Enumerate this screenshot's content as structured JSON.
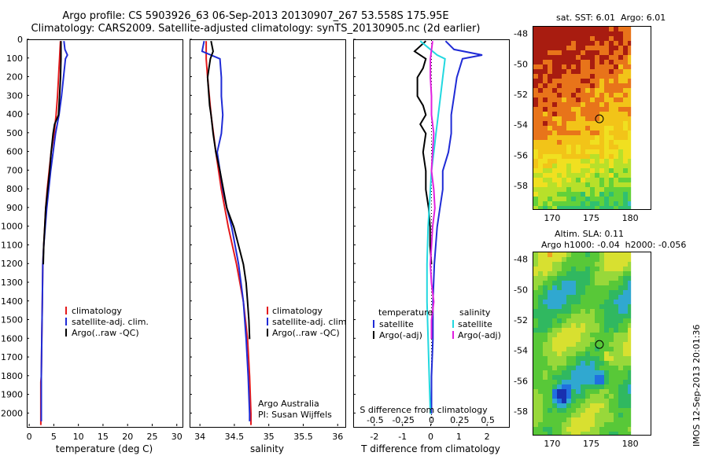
{
  "header": {
    "line1": "Argo profile: CS 5903926_63 06-Sep-2013 20130907_267 53.558S 175.95E",
    "line2": "Climatology: CARS2009. Satellite-adjusted climatology: synTS_20130905.nc (2d earlier)"
  },
  "colors": {
    "climatology": "#e41a1c",
    "satellite": "#1f2bd6",
    "argo": "#000000",
    "sat_diff": "#22d8e0",
    "argo_sal_diff": "#e020e0"
  },
  "chart_data": [
    {
      "type": "line",
      "xlabel": "temperature (deg C)",
      "xlim": [
        -0.5,
        31
      ],
      "xticks": [
        "0",
        "5",
        "10",
        "15",
        "20",
        "25",
        "30"
      ],
      "ylim": [
        2070,
        0
      ],
      "yticks": [
        "0",
        "100",
        "200",
        "300",
        "400",
        "500",
        "600",
        "700",
        "800",
        "900",
        "1000",
        "1100",
        "1200",
        "1300",
        "1400",
        "1500",
        "1600",
        "1700",
        "1800",
        "1900",
        "2000"
      ],
      "legend": [
        "climatology",
        "satellite-adj. clim.",
        "Argo(..raw -QC)"
      ],
      "series": [
        {
          "name": "climatology",
          "depth": [
            5,
            50,
            100,
            150,
            200,
            300,
            400,
            500,
            600,
            700,
            800,
            900,
            1000,
            1100,
            1200,
            1400,
            1600,
            1800,
            1830,
            2000,
            2060
          ],
          "values": [
            6.2,
            6.1,
            6.0,
            5.9,
            5.8,
            5.6,
            5.3,
            4.9,
            4.3,
            3.9,
            3.5,
            3.2,
            3.0,
            2.8,
            2.6,
            2.5,
            2.4,
            2.3,
            2.2,
            2.2,
            2.2
          ]
        },
        {
          "name": "satellite-adj. clim.",
          "depth": [
            5,
            50,
            80,
            100,
            200,
            300,
            400,
            500,
            600,
            700,
            800,
            900,
            1000,
            1100,
            1200,
            1400,
            1600,
            1800,
            2000,
            2040
          ],
          "values": [
            6.9,
            7.1,
            7.6,
            7.2,
            6.8,
            6.4,
            5.9,
            5.2,
            4.7,
            4.2,
            3.8,
            3.4,
            3.1,
            2.8,
            2.6,
            2.5,
            2.4,
            2.3,
            2.3,
            2.3
          ]
        },
        {
          "name": "Argo(..raw -QC)",
          "depth": [
            5,
            100,
            200,
            300,
            400,
            450,
            500,
            600,
            700,
            800,
            900,
            1000,
            1100,
            1200
          ],
          "values": [
            6.3,
            6.3,
            6.2,
            6.0,
            5.8,
            5.0,
            4.7,
            4.3,
            4.0,
            3.6,
            3.2,
            3.0,
            2.8,
            2.7
          ]
        }
      ]
    },
    {
      "type": "line",
      "xlabel": "salinity",
      "xlim": [
        33.85,
        36.1
      ],
      "xticks": [
        "34",
        "34.5",
        "35",
        "35.5",
        "36"
      ],
      "ylim": [
        2070,
        0
      ],
      "legend": [
        "climatology",
        "satellite-adj. clim.",
        "Argo(..raw -QC)"
      ],
      "annotation": [
        "Argo Australia",
        "PI: Susan Wijffels"
      ],
      "series": [
        {
          "name": "climatology",
          "depth": [
            5,
            100,
            200,
            400,
            600,
            800,
            1000,
            1200,
            1400,
            1600,
            1800,
            2000,
            2060
          ],
          "values": [
            34.08,
            34.08,
            34.1,
            34.15,
            34.22,
            34.3,
            34.4,
            34.52,
            34.62,
            34.68,
            34.71,
            34.73,
            34.73
          ]
        },
        {
          "name": "satellite-adj. clim.",
          "depth": [
            5,
            60,
            100,
            200,
            300,
            400,
            500,
            600,
            700,
            800,
            900,
            1000,
            1200,
            1400,
            1600,
            1800,
            2000,
            2040
          ],
          "values": [
            34.05,
            34.02,
            34.28,
            34.3,
            34.3,
            34.32,
            34.3,
            34.24,
            34.28,
            34.32,
            34.38,
            34.45,
            34.55,
            34.62,
            34.66,
            34.69,
            34.71,
            34.71
          ]
        },
        {
          "name": "Argo(..raw -QC)",
          "depth": [
            5,
            60,
            100,
            150,
            200,
            300,
            350,
            400,
            500,
            600,
            700,
            800,
            900,
            1000,
            1100,
            1200,
            1300,
            1400,
            1500,
            1600
          ],
          "values": [
            34.15,
            34.18,
            34.14,
            34.12,
            34.1,
            34.12,
            34.13,
            34.15,
            34.18,
            34.22,
            34.28,
            34.33,
            34.38,
            34.48,
            34.55,
            34.62,
            34.66,
            34.68,
            34.7,
            34.71
          ]
        }
      ]
    },
    {
      "type": "line",
      "xlabel": "T difference from climatology",
      "xlabel2": "S difference from climatology",
      "xlim": [
        -2.75,
        2.75
      ],
      "xticks": [
        "-2",
        "-1",
        "0",
        "1",
        "2"
      ],
      "xticks_s": [
        "-0.5",
        "-0.25",
        "0",
        "0.25",
        "0.5"
      ],
      "ylim": [
        2070,
        0
      ],
      "legend_temperature_title": "temperature",
      "legend_salinity_title": "salinity",
      "legend_temperature": [
        "satellite",
        "Argo(-adj)"
      ],
      "legend_salinity": [
        "satellite",
        "Argo(-adj)"
      ],
      "series": [
        {
          "name": "satellite",
          "quantity": "temperature",
          "depth": [
            5,
            50,
            80,
            100,
            200,
            300,
            400,
            500,
            600,
            700,
            800,
            900,
            1000,
            1200,
            1400,
            1600,
            1800,
            2000
          ],
          "values": [
            0.5,
            0.8,
            1.8,
            1.1,
            0.9,
            0.8,
            0.7,
            0.7,
            0.6,
            0.4,
            0.4,
            0.3,
            0.2,
            0.1,
            0.05,
            0.05,
            0.0,
            0.0
          ]
        },
        {
          "name": "Argo(-adj)",
          "quantity": "temperature",
          "depth": [
            5,
            60,
            100,
            150,
            200,
            300,
            350,
            400,
            450,
            500,
            600,
            700,
            800,
            900,
            1000,
            1100,
            1200
          ],
          "values": [
            -0.2,
            -0.6,
            -0.2,
            -0.3,
            -0.5,
            -0.5,
            -0.3,
            -0.2,
            -0.4,
            -0.2,
            -0.3,
            -0.2,
            -0.2,
            -0.1,
            -0.05,
            -0.05,
            0.0
          ]
        },
        {
          "name": "satellite",
          "quantity": "salinity",
          "depth": [
            5,
            80,
            100,
            200,
            300,
            400,
            500,
            600,
            700,
            800,
            1000,
            1200,
            1400,
            1600,
            1800,
            2000
          ],
          "values": [
            -0.1,
            0.05,
            0.12,
            0.1,
            0.08,
            0.06,
            0.04,
            0.02,
            0.0,
            -0.01,
            -0.03,
            -0.04,
            -0.04,
            -0.03,
            -0.02,
            -0.01
          ]
        },
        {
          "name": "Argo(-adj)",
          "quantity": "salinity",
          "depth": [
            5,
            100,
            200,
            300,
            400,
            500,
            600,
            700,
            800,
            900,
            1000,
            1100,
            1200,
            1300,
            1400,
            1500,
            1600
          ],
          "values": [
            0.01,
            -0.01,
            -0.01,
            0.0,
            0.0,
            0.02,
            0.01,
            0.0,
            0.02,
            0.03,
            0.01,
            0.0,
            -0.01,
            0.0,
            0.02,
            0.0,
            0.0
          ]
        }
      ]
    },
    {
      "type": "heatmap",
      "title": "sat. SST: 6.01  Argo: 6.01",
      "xticks": [
        "170",
        "175",
        "180"
      ],
      "yticks": [
        "-48",
        "-50",
        "-52",
        "-54",
        "-56",
        "-58"
      ],
      "xlim": [
        167.5,
        182.5
      ],
      "ylim": [
        -59.5,
        -47.5
      ],
      "marker": {
        "lon": 175.95,
        "lat": -53.558
      }
    },
    {
      "type": "heatmap",
      "title": "Altim. SLA: 0.11",
      "subtitle": "Argo h1000: -0.04  h2000: -0.056",
      "xticks": [
        "170",
        "175",
        "180"
      ],
      "yticks": [
        "-48",
        "-50",
        "-52",
        "-54",
        "-56",
        "-58"
      ],
      "xlim": [
        167.5,
        182.5
      ],
      "ylim": [
        -59.5,
        -47.5
      ],
      "marker": {
        "lon": 175.95,
        "lat": -53.558
      }
    }
  ],
  "footer": {
    "stamp": "IMOS 12-Sep-2013 20:01:36"
  }
}
